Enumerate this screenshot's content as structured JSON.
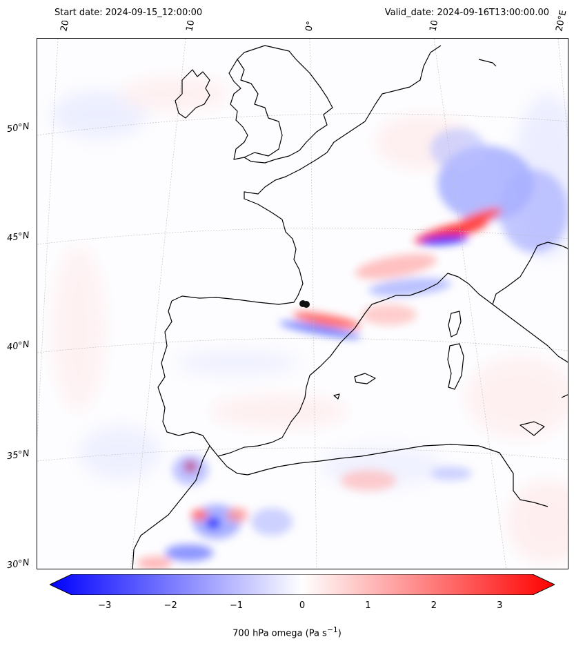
{
  "header": {
    "start_date": "Start date: 2024-09-15_12:00:00",
    "valid_date": "Valid_date: 2024-09-16T13:00:00.00"
  },
  "axes": {
    "lon_labels": [
      "20°W",
      "10°W",
      "0°",
      "10°E",
      "20°E"
    ],
    "lat_labels": [
      "50°N",
      "45°N",
      "40°N",
      "35°N",
      "30°N"
    ]
  },
  "colorbar": {
    "label_html": "700 hPa omega (Pa s<sup>−1</sup>)",
    "ticks": [
      "−3",
      "−2",
      "−1",
      "0",
      "1",
      "2",
      "3"
    ],
    "tick_values": [
      -3,
      -2,
      -1,
      0,
      1,
      2,
      3
    ],
    "vmin": -3.5,
    "vmax": 3.5,
    "colors": {
      "min": "#0000ff",
      "mid": "#ffffff",
      "max": "#ff0000"
    }
  }
}
